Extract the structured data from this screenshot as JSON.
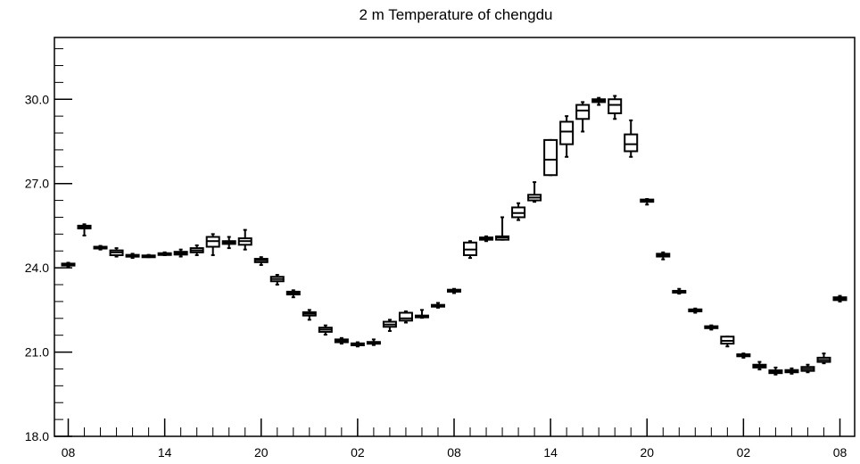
{
  "chart_data": {
    "type": "boxplot",
    "title": "2 m Temperature of chengdu",
    "xlabel": "",
    "ylabel": "",
    "xlim": [
      0,
      48
    ],
    "ylim": [
      18.0,
      32.2
    ],
    "y_ticks": [
      "18.0",
      "21.0",
      "24.0",
      "27.0",
      "30.0"
    ],
    "y_tick_values": [
      18,
      21,
      24,
      27,
      30
    ],
    "y_minor_step": 0.6,
    "x_ticks": [
      "08",
      "14",
      "20",
      "02",
      "08",
      "14",
      "20",
      "02",
      "08"
    ],
    "x_tick_values": [
      0,
      6,
      12,
      18,
      24,
      30,
      36,
      42,
      48
    ],
    "x_minor_step": 1,
    "grid": false,
    "legend": false,
    "boxes": [
      {
        "x": 0,
        "min": 24.05,
        "q1": 24.08,
        "median": 24.12,
        "q3": 24.15,
        "max": 24.18
      },
      {
        "x": 1,
        "min": 25.15,
        "q1": 25.4,
        "median": 25.45,
        "q3": 25.5,
        "max": 25.55
      },
      {
        "x": 2,
        "min": 24.65,
        "q1": 24.7,
        "median": 24.72,
        "q3": 24.75,
        "max": 24.78
      },
      {
        "x": 3,
        "min": 24.4,
        "q1": 24.45,
        "median": 24.55,
        "q3": 24.62,
        "max": 24.7
      },
      {
        "x": 4,
        "min": 24.35,
        "q1": 24.4,
        "median": 24.43,
        "q3": 24.46,
        "max": 24.5
      },
      {
        "x": 5,
        "min": 24.38,
        "q1": 24.4,
        "median": 24.42,
        "q3": 24.44,
        "max": 24.46
      },
      {
        "x": 6,
        "min": 24.45,
        "q1": 24.48,
        "median": 24.5,
        "q3": 24.52,
        "max": 24.55
      },
      {
        "x": 7,
        "min": 24.4,
        "q1": 24.47,
        "median": 24.52,
        "q3": 24.57,
        "max": 24.65
      },
      {
        "x": 8,
        "min": 24.45,
        "q1": 24.55,
        "median": 24.62,
        "q3": 24.7,
        "max": 24.8
      },
      {
        "x": 9,
        "min": 24.45,
        "q1": 24.75,
        "median": 24.95,
        "q3": 25.1,
        "max": 25.2
      },
      {
        "x": 10,
        "min": 24.7,
        "q1": 24.85,
        "median": 24.9,
        "q3": 24.95,
        "max": 25.1
      },
      {
        "x": 11,
        "min": 24.65,
        "q1": 24.82,
        "median": 24.95,
        "q3": 25.05,
        "max": 25.35
      },
      {
        "x": 12,
        "min": 24.1,
        "q1": 24.2,
        "median": 24.27,
        "q3": 24.32,
        "max": 24.38
      },
      {
        "x": 13,
        "min": 23.4,
        "q1": 23.52,
        "median": 23.6,
        "q3": 23.68,
        "max": 23.75
      },
      {
        "x": 14,
        "min": 22.95,
        "q1": 23.05,
        "median": 23.1,
        "q3": 23.15,
        "max": 23.2
      },
      {
        "x": 15,
        "min": 22.15,
        "q1": 22.3,
        "median": 22.37,
        "q3": 22.42,
        "max": 22.5
      },
      {
        "x": 16,
        "min": 21.62,
        "q1": 21.72,
        "median": 21.8,
        "q3": 21.87,
        "max": 21.95
      },
      {
        "x": 17,
        "min": 21.3,
        "q1": 21.35,
        "median": 21.4,
        "q3": 21.45,
        "max": 21.5
      },
      {
        "x": 18,
        "min": 21.2,
        "q1": 21.24,
        "median": 21.27,
        "q3": 21.31,
        "max": 21.35
      },
      {
        "x": 19,
        "min": 21.25,
        "q1": 21.3,
        "median": 21.32,
        "q3": 21.36,
        "max": 21.45
      },
      {
        "x": 20,
        "min": 21.75,
        "q1": 21.9,
        "median": 21.98,
        "q3": 22.08,
        "max": 22.15
      },
      {
        "x": 21,
        "min": 22.05,
        "q1": 22.12,
        "median": 22.2,
        "q3": 22.4,
        "max": 22.45
      },
      {
        "x": 22,
        "min": 22.22,
        "q1": 22.25,
        "median": 22.27,
        "q3": 22.3,
        "max": 22.5
      },
      {
        "x": 23,
        "min": 22.58,
        "q1": 22.62,
        "median": 22.65,
        "q3": 22.68,
        "max": 22.75
      },
      {
        "x": 24,
        "min": 23.1,
        "q1": 23.15,
        "median": 23.18,
        "q3": 23.22,
        "max": 23.25
      },
      {
        "x": 25,
        "min": 24.35,
        "q1": 24.45,
        "median": 24.65,
        "q3": 24.9,
        "max": 24.95
      },
      {
        "x": 26,
        "min": 24.95,
        "q1": 25.0,
        "median": 25.05,
        "q3": 25.08,
        "max": 25.12
      },
      {
        "x": 27,
        "min": 25.0,
        "q1": 25.0,
        "median": 25.08,
        "q3": 25.12,
        "max": 25.8
      },
      {
        "x": 28,
        "min": 25.7,
        "q1": 25.8,
        "median": 25.95,
        "q3": 26.15,
        "max": 26.3
      },
      {
        "x": 29,
        "min": 26.35,
        "q1": 26.4,
        "median": 26.5,
        "q3": 26.6,
        "max": 27.05
      },
      {
        "x": 30,
        "min": 27.3,
        "q1": 27.3,
        "median": 27.85,
        "q3": 28.55,
        "max": 28.55
      },
      {
        "x": 31,
        "min": 27.95,
        "q1": 28.4,
        "median": 28.85,
        "q3": 29.2,
        "max": 29.4
      },
      {
        "x": 32,
        "min": 28.85,
        "q1": 29.3,
        "median": 29.6,
        "q3": 29.8,
        "max": 29.9
      },
      {
        "x": 33,
        "min": 29.8,
        "q1": 29.9,
        "median": 29.95,
        "q3": 30.0,
        "max": 30.05
      },
      {
        "x": 34,
        "min": 29.3,
        "q1": 29.5,
        "median": 29.8,
        "q3": 30.0,
        "max": 30.12
      },
      {
        "x": 35,
        "min": 27.95,
        "q1": 28.15,
        "median": 28.4,
        "q3": 28.75,
        "max": 29.25
      },
      {
        "x": 36,
        "min": 26.25,
        "q1": 26.35,
        "median": 26.4,
        "q3": 26.43,
        "max": 26.45
      },
      {
        "x": 37,
        "min": 24.3,
        "q1": 24.4,
        "median": 24.45,
        "q3": 24.5,
        "max": 24.55
      },
      {
        "x": 38,
        "min": 23.08,
        "q1": 23.12,
        "median": 23.15,
        "q3": 23.18,
        "max": 23.25
      },
      {
        "x": 39,
        "min": 22.4,
        "q1": 22.45,
        "median": 22.48,
        "q3": 22.52,
        "max": 22.55
      },
      {
        "x": 40,
        "min": 21.8,
        "q1": 21.85,
        "median": 21.88,
        "q3": 21.92,
        "max": 21.95
      },
      {
        "x": 41,
        "min": 21.2,
        "q1": 21.3,
        "median": 21.4,
        "q3": 21.55,
        "max": 21.55
      },
      {
        "x": 42,
        "min": 20.8,
        "q1": 20.85,
        "median": 20.88,
        "q3": 20.92,
        "max": 20.95
      },
      {
        "x": 43,
        "min": 20.38,
        "q1": 20.45,
        "median": 20.5,
        "q3": 20.55,
        "max": 20.65
      },
      {
        "x": 44,
        "min": 20.2,
        "q1": 20.25,
        "median": 20.3,
        "q3": 20.35,
        "max": 20.45
      },
      {
        "x": 45,
        "min": 20.23,
        "q1": 20.28,
        "median": 20.32,
        "q3": 20.36,
        "max": 20.42
      },
      {
        "x": 46,
        "min": 20.28,
        "q1": 20.33,
        "median": 20.4,
        "q3": 20.47,
        "max": 20.55
      },
      {
        "x": 47,
        "min": 20.6,
        "q1": 20.65,
        "median": 20.72,
        "q3": 20.8,
        "max": 20.95
      },
      {
        "x": 48,
        "min": 22.8,
        "q1": 22.85,
        "median": 22.9,
        "q3": 22.95,
        "max": 23.0
      }
    ]
  }
}
